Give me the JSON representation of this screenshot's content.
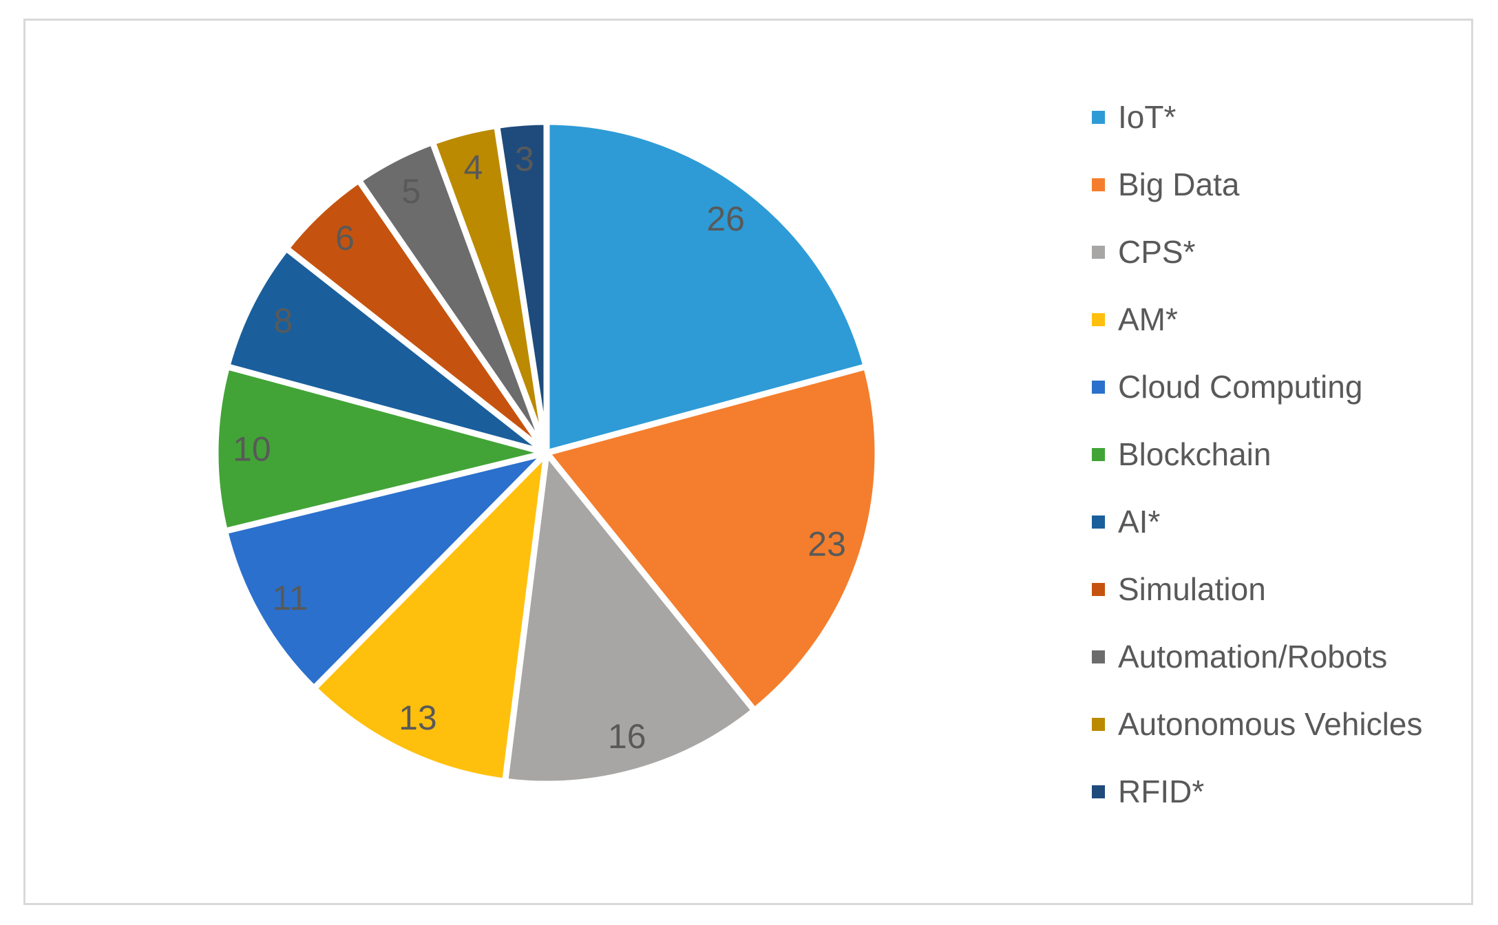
{
  "frame": {
    "background": "#FFFFFF",
    "border_color": "#D9D9D9"
  },
  "chart_data": {
    "type": "pie",
    "title": "",
    "total": 125,
    "start_angle_deg": 0,
    "direction": "clockwise",
    "slices": [
      {
        "label": "IoT*",
        "value": 26,
        "color": "#2E9BD6"
      },
      {
        "label": "Big Data",
        "value": 23,
        "color": "#F47E2D"
      },
      {
        "label": "CPS*",
        "value": 16,
        "color": "#A8A6A4"
      },
      {
        "label": "AM*",
        "value": 13,
        "color": "#FFC00D"
      },
      {
        "label": "Cloud Computing",
        "value": 11,
        "color": "#2B70CC"
      },
      {
        "label": "Blockchain",
        "value": 10,
        "color": "#42A437"
      },
      {
        "label": "AI*",
        "value": 8,
        "color": "#1A5F9C"
      },
      {
        "label": "Simulation",
        "value": 6,
        "color": "#C5530F"
      },
      {
        "label": "Automation/Robots",
        "value": 5,
        "color": "#6C6C6C"
      },
      {
        "label": "Autonomous Vehicles",
        "value": 4,
        "color": "#BB8A00"
      },
      {
        "label": "RFID*",
        "value": 3,
        "color": "#1E4B7B"
      }
    ],
    "data_labels": {
      "show_values": true,
      "color": "#595959"
    },
    "legend": {
      "position": "right",
      "text_color": "#595959"
    },
    "slice_gap_color": "#FFFFFF"
  }
}
